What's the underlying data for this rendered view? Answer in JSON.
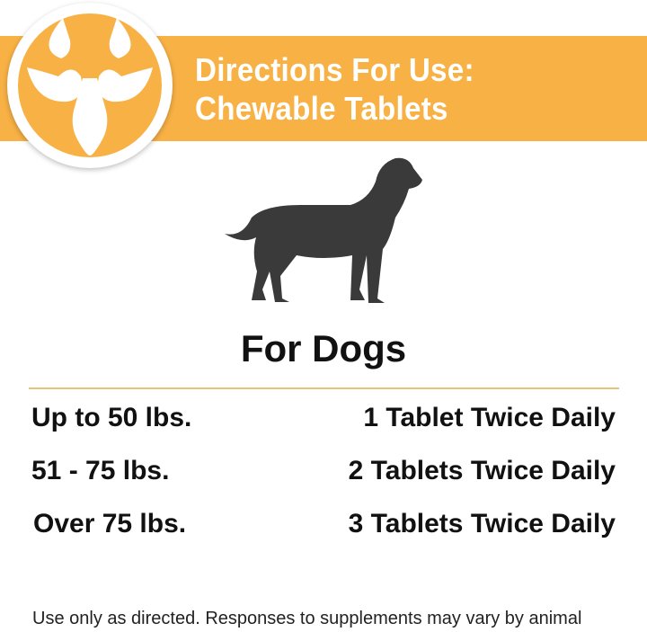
{
  "banner": {
    "title_line1": "Directions For Use:",
    "title_line2": "Chewable Tablets",
    "color": "#F8B145"
  },
  "logo": {
    "icon": "kidney-bladder-icon"
  },
  "illustration": {
    "icon": "dog-silhouette-icon"
  },
  "heading": "For Dogs",
  "dosage": [
    {
      "weight": "Up to 50 lbs.",
      "dose": "1 Tablet Twice Daily"
    },
    {
      "weight": "51 - 75 lbs.",
      "dose": "2 Tablets Twice Daily"
    },
    {
      "weight": "Over 75 lbs.",
      "dose": "3 Tablets Twice Daily"
    }
  ],
  "footer": "Use only as directed. Responses to supplements may vary by animal"
}
